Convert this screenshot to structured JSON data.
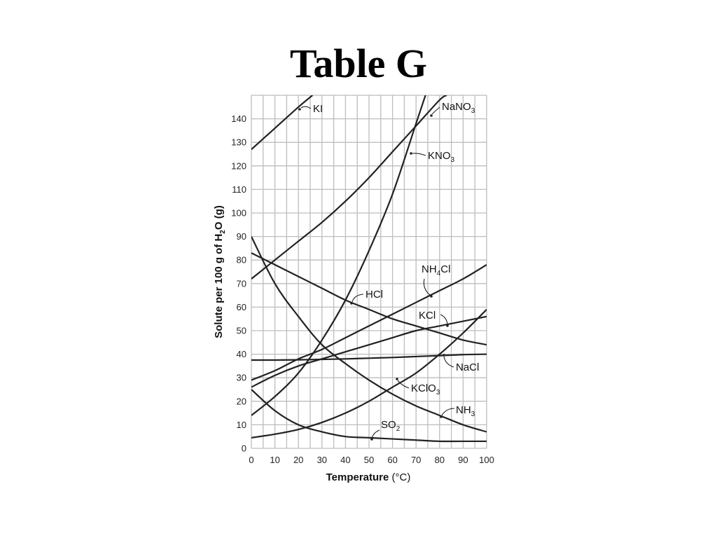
{
  "slide": {
    "title": "Table G"
  },
  "chart_data": {
    "type": "line",
    "title": "",
    "xlabel": "Temperature (°C)",
    "xlabel_main": "Temperature",
    "xlabel_unit": "(°C)",
    "ylabel_parts": [
      "Solute per 100 g of H",
      "2",
      "O (g)"
    ],
    "xlim": [
      0,
      100
    ],
    "ylim": [
      0,
      150
    ],
    "x_ticks": [
      0,
      10,
      20,
      30,
      40,
      50,
      60,
      70,
      80,
      90,
      100
    ],
    "y_ticks": [
      0,
      10,
      20,
      30,
      40,
      50,
      60,
      70,
      80,
      90,
      100,
      110,
      120,
      130,
      140
    ],
    "grid": true,
    "series": [
      {
        "name": "KI",
        "label_parts": [
          "KI"
        ],
        "x": [
          0,
          10,
          20,
          26
        ],
        "y": [
          127,
          136,
          145,
          150
        ]
      },
      {
        "name": "NaNO3",
        "label_parts": [
          "NaNO",
          "3"
        ],
        "x": [
          0,
          10,
          20,
          30,
          40,
          50,
          60,
          70,
          80,
          83
        ],
        "y": [
          72,
          80,
          88,
          96,
          105,
          115,
          126,
          137,
          148,
          150
        ]
      },
      {
        "name": "KNO3",
        "label_parts": [
          "KNO",
          "3"
        ],
        "x": [
          0,
          10,
          20,
          30,
          40,
          50,
          60,
          70,
          74
        ],
        "y": [
          14,
          22,
          32,
          46,
          63,
          84,
          108,
          138,
          150
        ]
      },
      {
        "name": "NH4Cl",
        "label_parts": [
          "NH",
          "4",
          "Cl"
        ],
        "x": [
          0,
          10,
          20,
          30,
          40,
          50,
          60,
          70,
          80,
          90,
          100
        ],
        "y": [
          29,
          33,
          38,
          42,
          47,
          52,
          57,
          62,
          67,
          72,
          78
        ]
      },
      {
        "name": "HCl",
        "label_parts": [
          "HCl"
        ],
        "x": [
          0,
          10,
          20,
          30,
          40,
          50,
          60,
          70,
          80,
          90,
          100
        ],
        "y": [
          83,
          78,
          73,
          68,
          63,
          59,
          55,
          52,
          49,
          46,
          44
        ]
      },
      {
        "name": "KCl",
        "label_parts": [
          "KCl"
        ],
        "x": [
          0,
          10,
          20,
          30,
          40,
          50,
          60,
          70,
          80,
          90,
          100
        ],
        "y": [
          26,
          31,
          35,
          38,
          41,
          44,
          47,
          50,
          52,
          54,
          56
        ]
      },
      {
        "name": "NaCl",
        "label_parts": [
          "NaCl"
        ],
        "x": [
          0,
          10,
          20,
          30,
          40,
          50,
          60,
          70,
          80,
          90,
          100
        ],
        "y": [
          37.5,
          37.5,
          37.6,
          37.8,
          38,
          38.3,
          38.6,
          39,
          39.4,
          39.8,
          40
        ]
      },
      {
        "name": "KClO3",
        "label_parts": [
          "KClO",
          "3"
        ],
        "x": [
          0,
          10,
          20,
          30,
          40,
          50,
          60,
          70,
          80,
          90,
          100
        ],
        "y": [
          4.5,
          6,
          8,
          11,
          15,
          20,
          26,
          32,
          40,
          49,
          59
        ]
      },
      {
        "name": "NH3",
        "label_parts": [
          "NH",
          "3"
        ],
        "x": [
          0,
          10,
          20,
          30,
          40,
          50,
          60,
          70,
          80,
          90,
          100
        ],
        "y": [
          90,
          70,
          56,
          44,
          36,
          29,
          23,
          18,
          14,
          10,
          7
        ]
      },
      {
        "name": "SO2",
        "label_parts": [
          "SO",
          "2"
        ],
        "x": [
          0,
          10,
          20,
          30,
          40,
          50,
          60,
          70,
          80,
          90,
          100
        ],
        "y": [
          25,
          16,
          10,
          7,
          5,
          4.5,
          4,
          3.5,
          3,
          3,
          3
        ]
      }
    ]
  }
}
